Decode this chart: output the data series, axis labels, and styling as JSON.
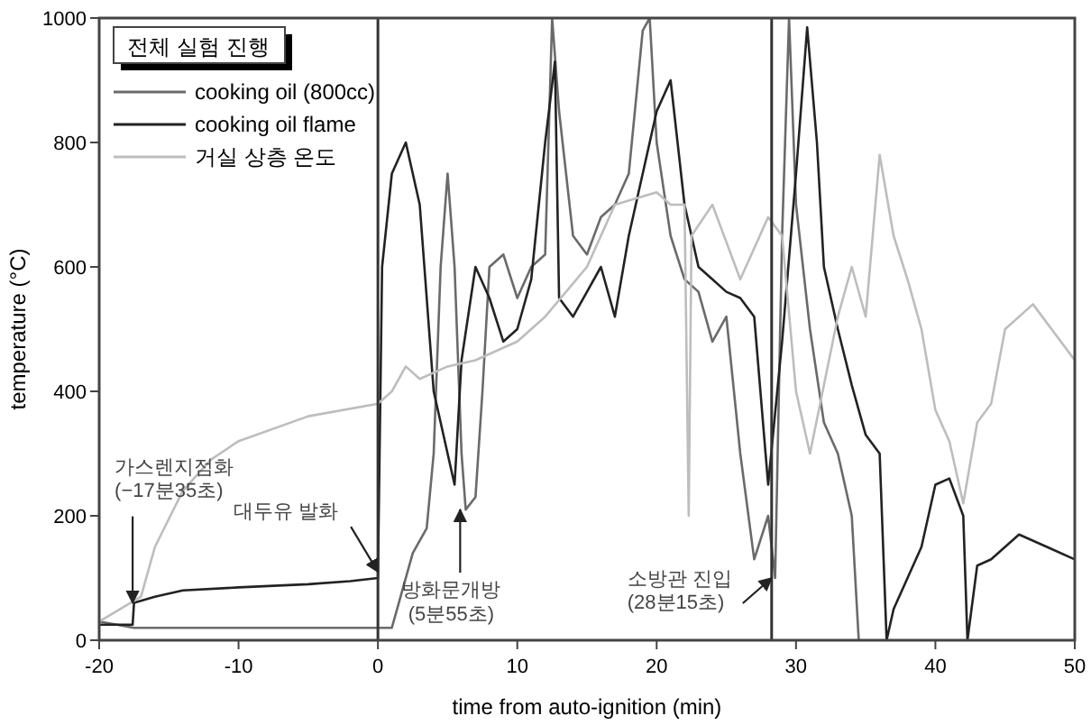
{
  "chart_data": {
    "type": "line",
    "xlabel": "time from auto-ignition (min)",
    "ylabel": "temperature (°C)",
    "legend_title": "전체 실험 진행",
    "legend": "top left",
    "xlim": [
      -20,
      50
    ],
    "ylim": [
      0,
      1000
    ],
    "xticks": [
      -20,
      -10,
      0,
      10,
      20,
      30,
      40,
      50
    ],
    "yticks": [
      0,
      200,
      400,
      600,
      800,
      1000
    ],
    "grid": false,
    "ref_lines": [
      {
        "axis": "x",
        "value": 0,
        "color": "#333333"
      },
      {
        "axis": "x",
        "value": 28.25,
        "color": "#333333"
      }
    ],
    "annotations": [
      {
        "text": "가스렌지점화\n(−17분35초)",
        "x": -17.6,
        "y": 60
      },
      {
        "text": "대두유 발화",
        "x": 0,
        "y": 110
      },
      {
        "text": "방화문개방\n(5분55초)",
        "x": 5.9,
        "y": 210
      },
      {
        "text": "소방관 진입\n(28분15초)",
        "x": 28.25,
        "y": 100
      }
    ],
    "series": [
      {
        "name": "cooking oil (800cc)",
        "color": "#6a6a6a",
        "x": [
          -20,
          -17.5,
          0,
          1,
          1.5,
          2.5,
          3.5,
          4,
          4.5,
          5,
          5.5,
          6,
          6.3,
          7,
          7.5,
          8,
          9,
          10,
          11,
          12,
          12.5,
          13,
          14,
          15,
          16,
          17,
          18,
          19,
          19.5,
          20,
          21,
          22,
          23,
          24,
          25,
          26,
          27,
          28,
          28.5,
          29,
          29.5,
          30,
          31,
          32,
          33,
          34,
          34.5
        ],
        "values": [
          30,
          20,
          20,
          20,
          60,
          140,
          180,
          300,
          600,
          750,
          600,
          300,
          210,
          230,
          400,
          600,
          620,
          550,
          600,
          620,
          1000,
          850,
          650,
          620,
          680,
          700,
          750,
          980,
          1000,
          800,
          650,
          580,
          560,
          480,
          520,
          300,
          130,
          200,
          100,
          650,
          1000,
          700,
          500,
          350,
          300,
          200,
          0
        ]
      },
      {
        "name": "cooking oil flame",
        "color": "#222222",
        "x": [
          -20,
          -17.6,
          -17.5,
          -16,
          -14,
          -10,
          -5,
          -2,
          0,
          0.3,
          1,
          2,
          3,
          4,
          5,
          5.5,
          6,
          7,
          8,
          9,
          10,
          11,
          12,
          12.7,
          13,
          14,
          15,
          16,
          17,
          18,
          19,
          20,
          21,
          22,
          23,
          24,
          25,
          26,
          27,
          28,
          29,
          30,
          30.8,
          31.5,
          32,
          33,
          34,
          35,
          36,
          36.5,
          37,
          38,
          39,
          40,
          41,
          42,
          42.3,
          43,
          44,
          46,
          48,
          50
        ],
        "values": [
          25,
          25,
          60,
          70,
          80,
          85,
          90,
          95,
          100,
          600,
          750,
          800,
          700,
          400,
          300,
          250,
          450,
          600,
          550,
          480,
          500,
          580,
          800,
          930,
          550,
          520,
          560,
          600,
          520,
          650,
          750,
          850,
          900,
          700,
          600,
          580,
          560,
          550,
          520,
          250,
          480,
          750,
          985,
          800,
          600,
          500,
          410,
          330,
          300,
          0,
          50,
          100,
          150,
          250,
          260,
          200,
          0,
          120,
          130,
          170,
          150,
          130
        ]
      },
      {
        "name": "거실 상층 온도",
        "color": "#bdbdbd",
        "x": [
          -20,
          -17,
          -16,
          -14,
          -12,
          -10,
          -5,
          0,
          1,
          2,
          3,
          5,
          7,
          10,
          12,
          15,
          17,
          20,
          21,
          22,
          22.3,
          22.5,
          24,
          26,
          28,
          29,
          30,
          31,
          33,
          34,
          35,
          36,
          37,
          38,
          39,
          40,
          41,
          42,
          43,
          44,
          45,
          47,
          49,
          50
        ],
        "values": [
          30,
          70,
          150,
          240,
          290,
          320,
          360,
          380,
          400,
          440,
          420,
          440,
          450,
          480,
          520,
          600,
          700,
          720,
          700,
          700,
          200,
          650,
          700,
          580,
          680,
          650,
          400,
          300,
          520,
          600,
          520,
          780,
          650,
          580,
          500,
          370,
          320,
          220,
          350,
          380,
          500,
          540,
          480,
          450
        ]
      }
    ]
  }
}
